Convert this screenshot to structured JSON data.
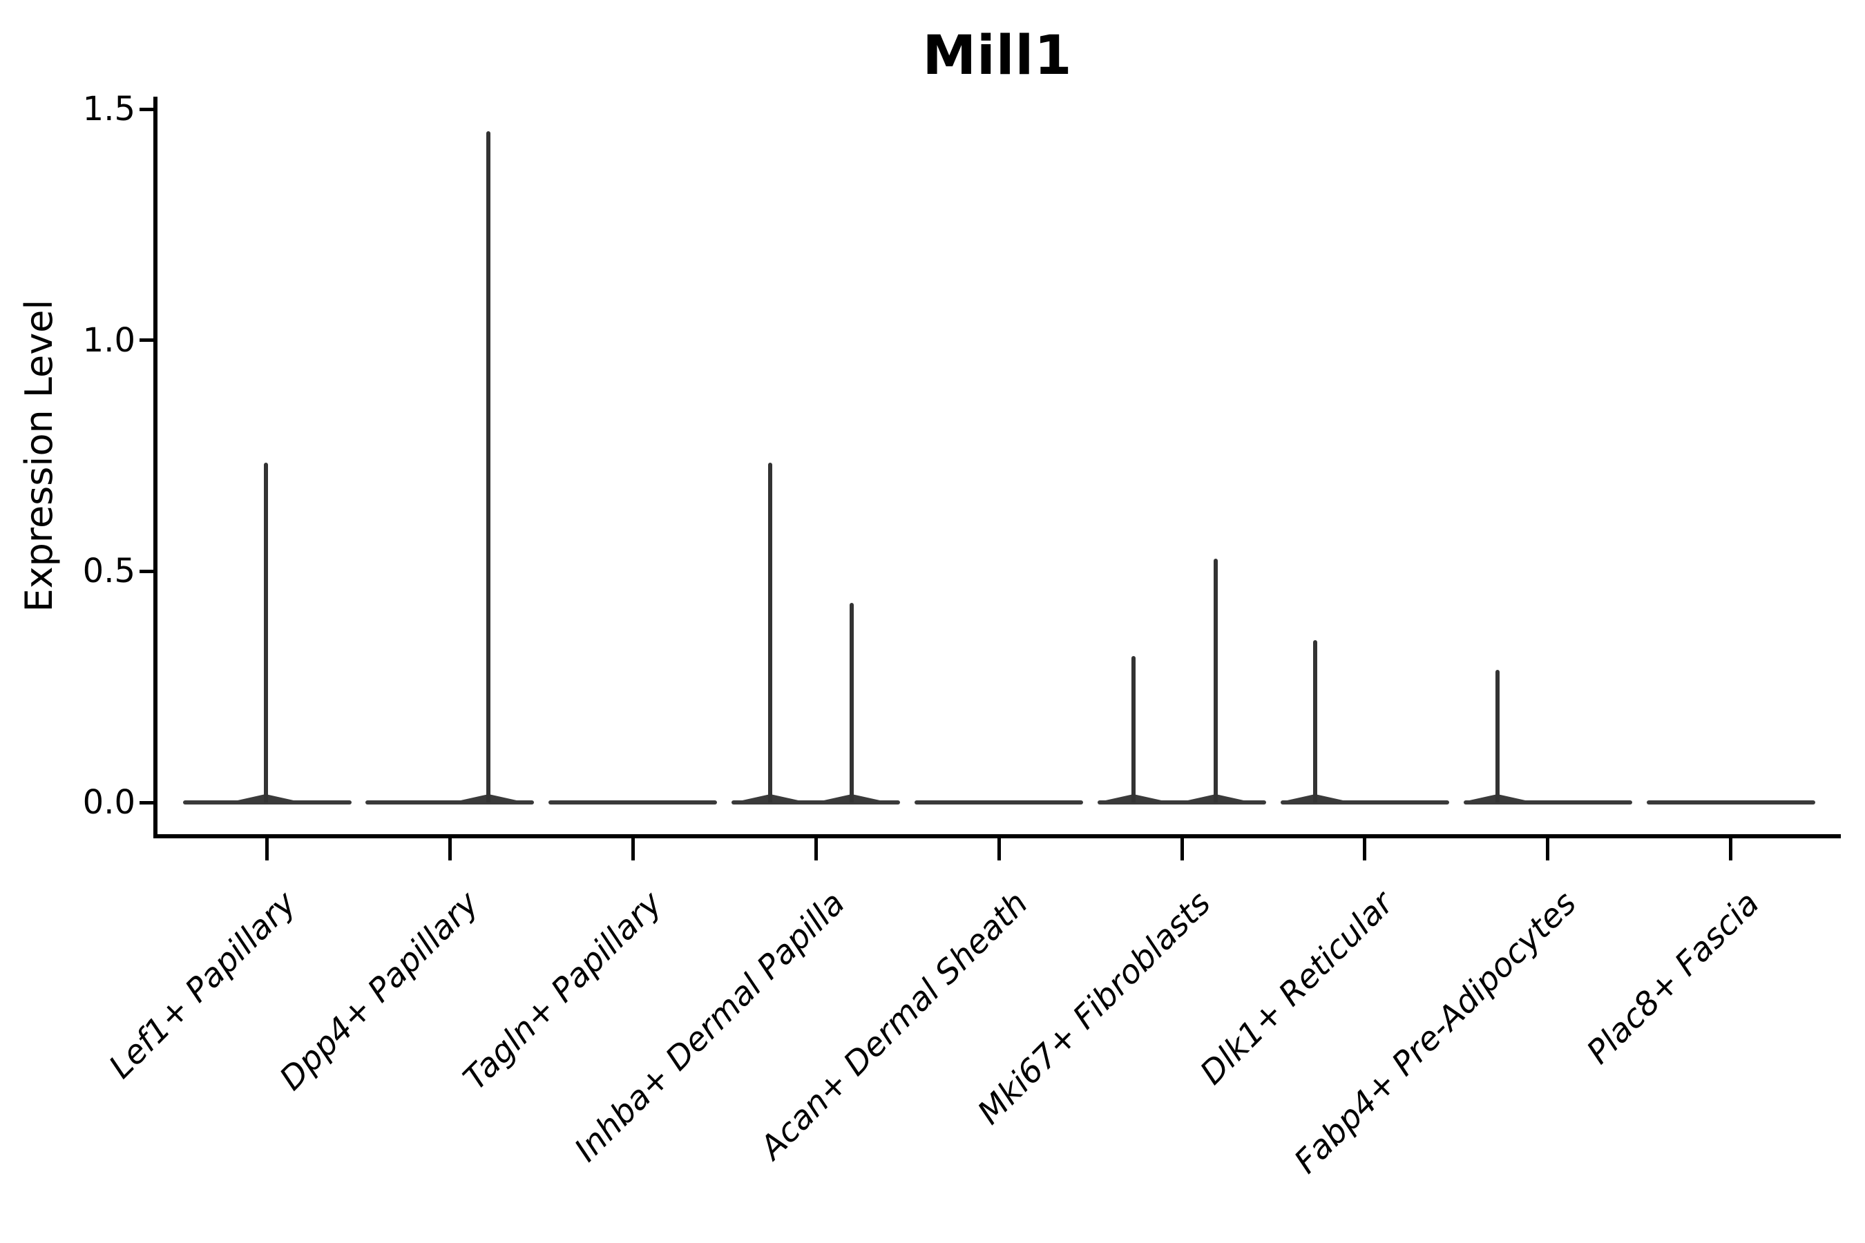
{
  "title": "Mill1",
  "ylabel": "Expression Level",
  "chart_data": {
    "type": "violin",
    "title": "Mill1",
    "xlabel": "",
    "ylabel": "Expression Level",
    "ylim": [
      0.0,
      1.5
    ],
    "yticks": [
      0.0,
      0.5,
      1.0,
      1.5
    ],
    "ytick_labels": [
      "0.0",
      "0.5",
      "1.0",
      "1.5"
    ],
    "grid": false,
    "legend": "none",
    "outline_color": "#383838",
    "axis_color": "#000000",
    "categories": [
      "Lef1+ Papillary",
      "Dpp4+ Papillary",
      "Tagln+ Papillary",
      "Inhba+ Dermal Papilla",
      "Acan+ Dermal Sheath",
      "Mki67+ Fibroblasts",
      "Dlk1+ Reticular",
      "Fabp4+ Pre-Adipocytes",
      "Plac8+ Fascia"
    ],
    "violins": [
      {
        "category": "Lef1+ Papillary",
        "baseline_value": 0.0,
        "max_expression": 0.735,
        "spikes": [
          {
            "dx": -2,
            "value": 0.735
          }
        ]
      },
      {
        "category": "Dpp4+ Papillary",
        "baseline_value": 0.0,
        "max_expression": 1.452,
        "spikes": [
          {
            "dx": 56,
            "value": 1.452
          }
        ]
      },
      {
        "category": "Tagln+ Papillary",
        "baseline_value": 0.0,
        "max_expression": 0.0,
        "spikes": []
      },
      {
        "category": "Inhba+ Dermal Papilla",
        "baseline_value": 0.0,
        "max_expression": 0.735,
        "spikes": [
          {
            "dx": -66,
            "value": 0.735
          },
          {
            "dx": 52,
            "value": 0.432
          }
        ]
      },
      {
        "category": "Acan+ Dermal Sheath",
        "baseline_value": 0.0,
        "max_expression": 0.0,
        "spikes": []
      },
      {
        "category": "Mki67+ Fibroblasts",
        "baseline_value": 0.0,
        "max_expression": 0.527,
        "spikes": [
          {
            "dx": -70,
            "value": 0.317
          },
          {
            "dx": 49,
            "value": 0.527
          }
        ]
      },
      {
        "category": "Dlk1+ Reticular",
        "baseline_value": 0.0,
        "max_expression": 0.351,
        "spikes": [
          {
            "dx": -72,
            "value": 0.351
          }
        ]
      },
      {
        "category": "Fabp4+ Pre-Adipocytes",
        "baseline_value": 0.0,
        "max_expression": 0.287,
        "spikes": [
          {
            "dx": -73,
            "value": 0.287
          }
        ]
      },
      {
        "category": "Plac8+ Fascia",
        "baseline_value": 0.0,
        "max_expression": 0.0,
        "spikes": []
      }
    ]
  }
}
